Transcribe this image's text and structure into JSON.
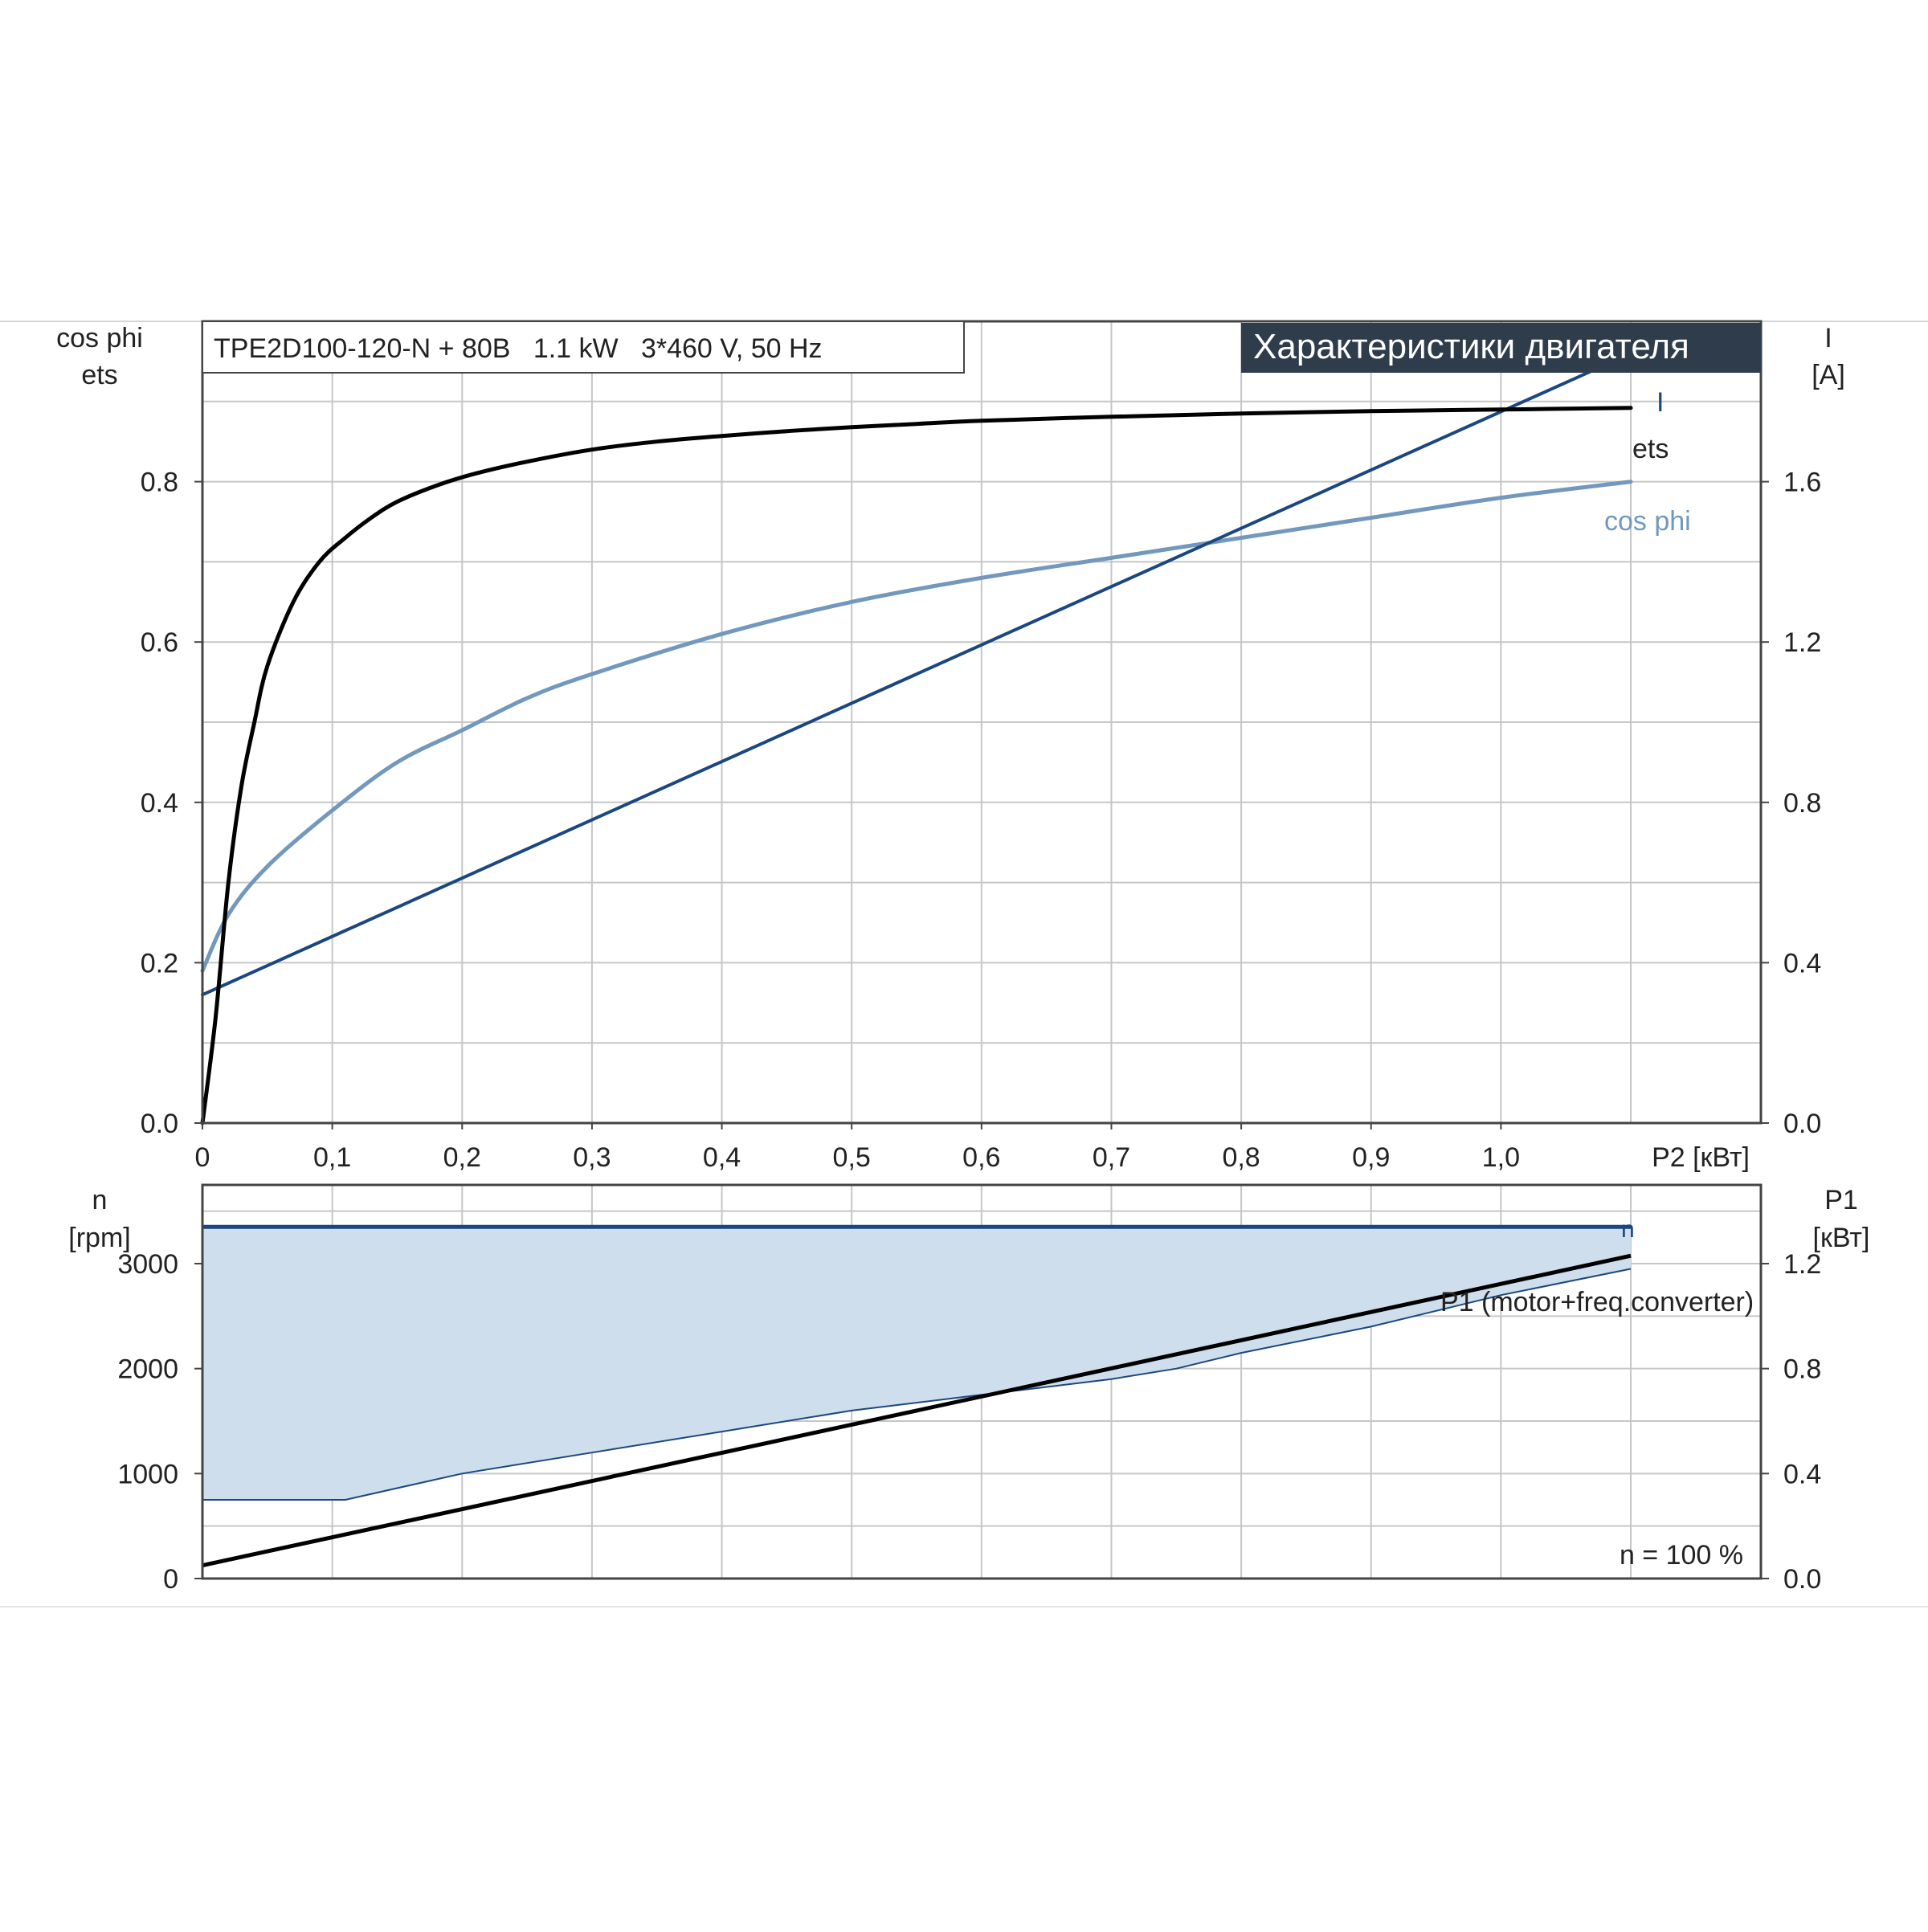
{
  "header": {
    "model_label": "TPE2D100-120-N + 80B   1.1 kW   3*460 V, 50 Hz",
    "title": "Характеристики двигателя"
  },
  "colors": {
    "background": "#ffffff",
    "grid": "#c6c6c6",
    "axis": "#444444",
    "title_bg": "#2f3c4c",
    "title_fg": "#ffffff",
    "ets_line": "#000000",
    "current_line": "#1b4780",
    "cosphi_line": "#7298bd",
    "speed_line": "#1b4780",
    "speed_fill": "#cfdeec",
    "p1_line": "#000000"
  },
  "chart_data": [
    {
      "type": "line",
      "title": "Характеристики двигателя",
      "xlabel": "P2 [кВт]",
      "ylabel_left": [
        "cos phi",
        "ets"
      ],
      "ylabel_right": [
        "I",
        "[A]"
      ],
      "xlim": [
        0,
        1.2
      ],
      "ylim_left": [
        0,
        1.0
      ],
      "ylim_right": [
        0,
        2.0
      ],
      "x_ticks": [
        "0",
        "0,1",
        "0,2",
        "0,3",
        "0,4",
        "0,5",
        "0,6",
        "0,7",
        "0,8",
        "0,9",
        "1,0"
      ],
      "y_ticks_left": [
        "0.0",
        "0.2",
        "0.4",
        "0.6",
        "0.8"
      ],
      "y_ticks_right": [
        "0.0",
        "0.4",
        "0.8",
        "1.2",
        "1.6"
      ],
      "grid": true,
      "series": [
        {
          "name": "ets",
          "axis": "left",
          "x": [
            0,
            0.01,
            0.02,
            0.03,
            0.04,
            0.05,
            0.07,
            0.09,
            0.11,
            0.13,
            0.15,
            0.18,
            0.21,
            0.25,
            0.3,
            0.35,
            0.4,
            0.45,
            0.5,
            0.55,
            0.6,
            0.7,
            0.8,
            0.9,
            1.0,
            1.1
          ],
          "y": [
            0.0,
            0.13,
            0.3,
            0.42,
            0.5,
            0.57,
            0.65,
            0.7,
            0.73,
            0.755,
            0.775,
            0.795,
            0.81,
            0.825,
            0.84,
            0.85,
            0.857,
            0.863,
            0.868,
            0.872,
            0.876,
            0.881,
            0.885,
            0.888,
            0.89,
            0.892
          ]
        },
        {
          "name": "cos phi",
          "axis": "left",
          "x": [
            0,
            0.02,
            0.05,
            0.1,
            0.15,
            0.2,
            0.25,
            0.3,
            0.4,
            0.5,
            0.6,
            0.7,
            0.8,
            0.9,
            1.0,
            1.1
          ],
          "y": [
            0.19,
            0.26,
            0.32,
            0.39,
            0.45,
            0.49,
            0.53,
            0.56,
            0.61,
            0.65,
            0.68,
            0.705,
            0.73,
            0.755,
            0.78,
            0.8
          ]
        },
        {
          "name": "I",
          "axis": "right",
          "x": [
            0,
            1.1
          ],
          "y": [
            0.32,
            1.92
          ]
        }
      ]
    },
    {
      "type": "line",
      "xlabel": "P2 [кВт]",
      "ylabel_left": [
        "n",
        "[rpm]"
      ],
      "ylabel_right": [
        "P1",
        "[кВт]"
      ],
      "xlim": [
        0,
        1.2
      ],
      "ylim_left": [
        0,
        3750
      ],
      "ylim_right": [
        0,
        1.5
      ],
      "y_ticks_left": [
        "0",
        "1000",
        "2000",
        "3000"
      ],
      "y_ticks_right": [
        "0.0",
        "0.4",
        "0.8",
        "1.2"
      ],
      "grid": true,
      "annotation": "n = 100 %",
      "series": [
        {
          "name": "n",
          "axis": "left",
          "x": [
            0,
            1.1
          ],
          "y": [
            3350,
            3350
          ]
        },
        {
          "name": "n_min",
          "axis": "left",
          "x": [
            0,
            0.11,
            0.2,
            0.3,
            0.4,
            0.5,
            0.6,
            0.7,
            0.75,
            0.8,
            0.9,
            1.0,
            1.1
          ],
          "y": [
            750,
            750,
            1000,
            1200,
            1400,
            1600,
            1750,
            1900,
            2000,
            2150,
            2400,
            2700,
            2950
          ]
        },
        {
          "name": "P1 (motor+freq.converter)",
          "axis": "right",
          "x": [
            0,
            1.1
          ],
          "y": [
            0.05,
            1.23
          ]
        }
      ]
    }
  ]
}
